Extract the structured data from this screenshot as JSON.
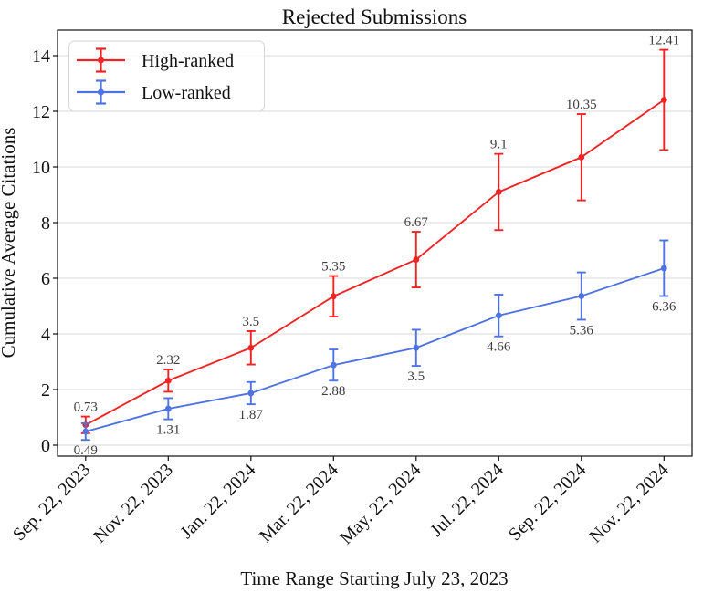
{
  "figure": {
    "background": "#ffffff"
  },
  "chart_data": {
    "type": "line",
    "title": "Rejected Submissions",
    "xlabel": "Time Range Starting July 23, 2023",
    "ylabel": "Cumulative Average Citations",
    "categories": [
      "Sep. 22, 2023",
      "Nov. 22, 2023",
      "Jan. 22, 2024",
      "Mar. 22, 2024",
      "May. 22, 2024",
      "Jul. 22, 2024",
      "Sep. 22, 2024",
      "Nov. 22, 2024"
    ],
    "y_ticks": [
      0,
      2,
      4,
      6,
      8,
      10,
      12,
      14
    ],
    "ylim": [
      -0.4,
      14.9
    ],
    "grid": "horizontal-only",
    "legend_position": "upper left",
    "series": [
      {
        "name": "High-ranked",
        "color": "#f02424",
        "values": [
          0.73,
          2.32,
          3.5,
          5.35,
          6.67,
          9.1,
          10.35,
          12.41
        ],
        "errors": [
          0.3,
          0.4,
          0.6,
          0.73,
          1.0,
          1.37,
          1.55,
          1.8
        ],
        "point_labels": [
          "0.73",
          "2.32",
          "3.5",
          "5.35",
          "6.67",
          "9.1",
          "10.35",
          "12.41"
        ],
        "label_side": "above"
      },
      {
        "name": "Low-ranked",
        "color": "#4f73e0",
        "values": [
          0.49,
          1.31,
          1.87,
          2.88,
          3.5,
          4.66,
          5.36,
          6.36
        ],
        "errors": [
          0.3,
          0.38,
          0.4,
          0.56,
          0.65,
          0.75,
          0.85,
          1.0
        ],
        "point_labels": [
          "0.49",
          "1.31",
          "1.87",
          "2.88",
          "3.5",
          "4.66",
          "5.36",
          "6.36"
        ],
        "label_side": "below"
      }
    ]
  },
  "colors": {
    "annotation": "#3d3d3d",
    "grid": "#d9d9d9",
    "axis": "#111111"
  }
}
